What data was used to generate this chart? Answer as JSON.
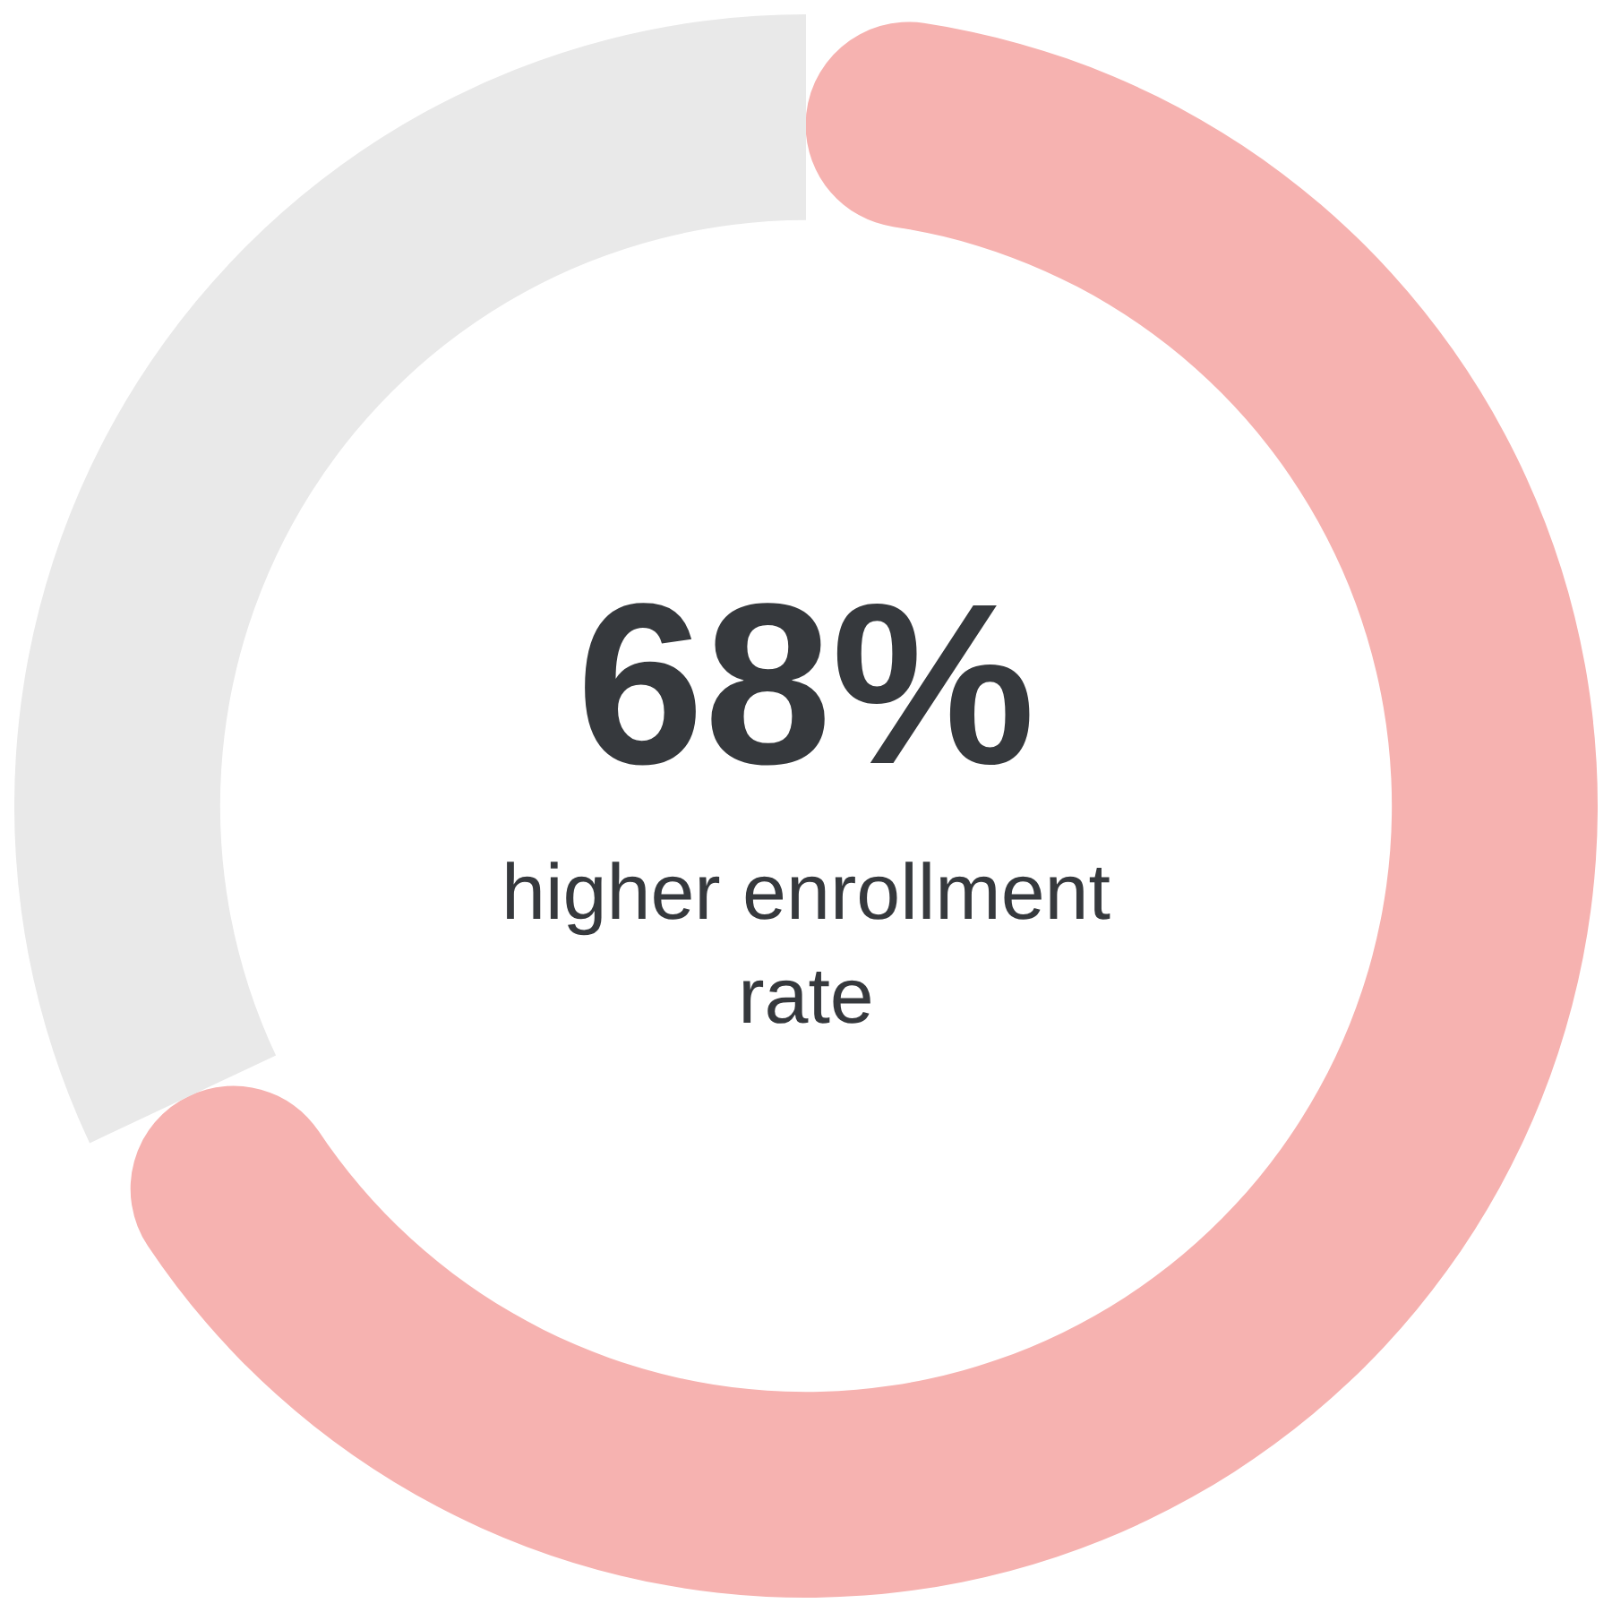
{
  "chart_data": {
    "type": "donut",
    "categories": [
      null,
      null
    ],
    "values": [
      68,
      32
    ],
    "colors": [
      "#f6b2b0",
      "#e9e9e9"
    ],
    "legend": false,
    "annotations": [
      "68%",
      "higher enrollment rate"
    ]
  }
}
